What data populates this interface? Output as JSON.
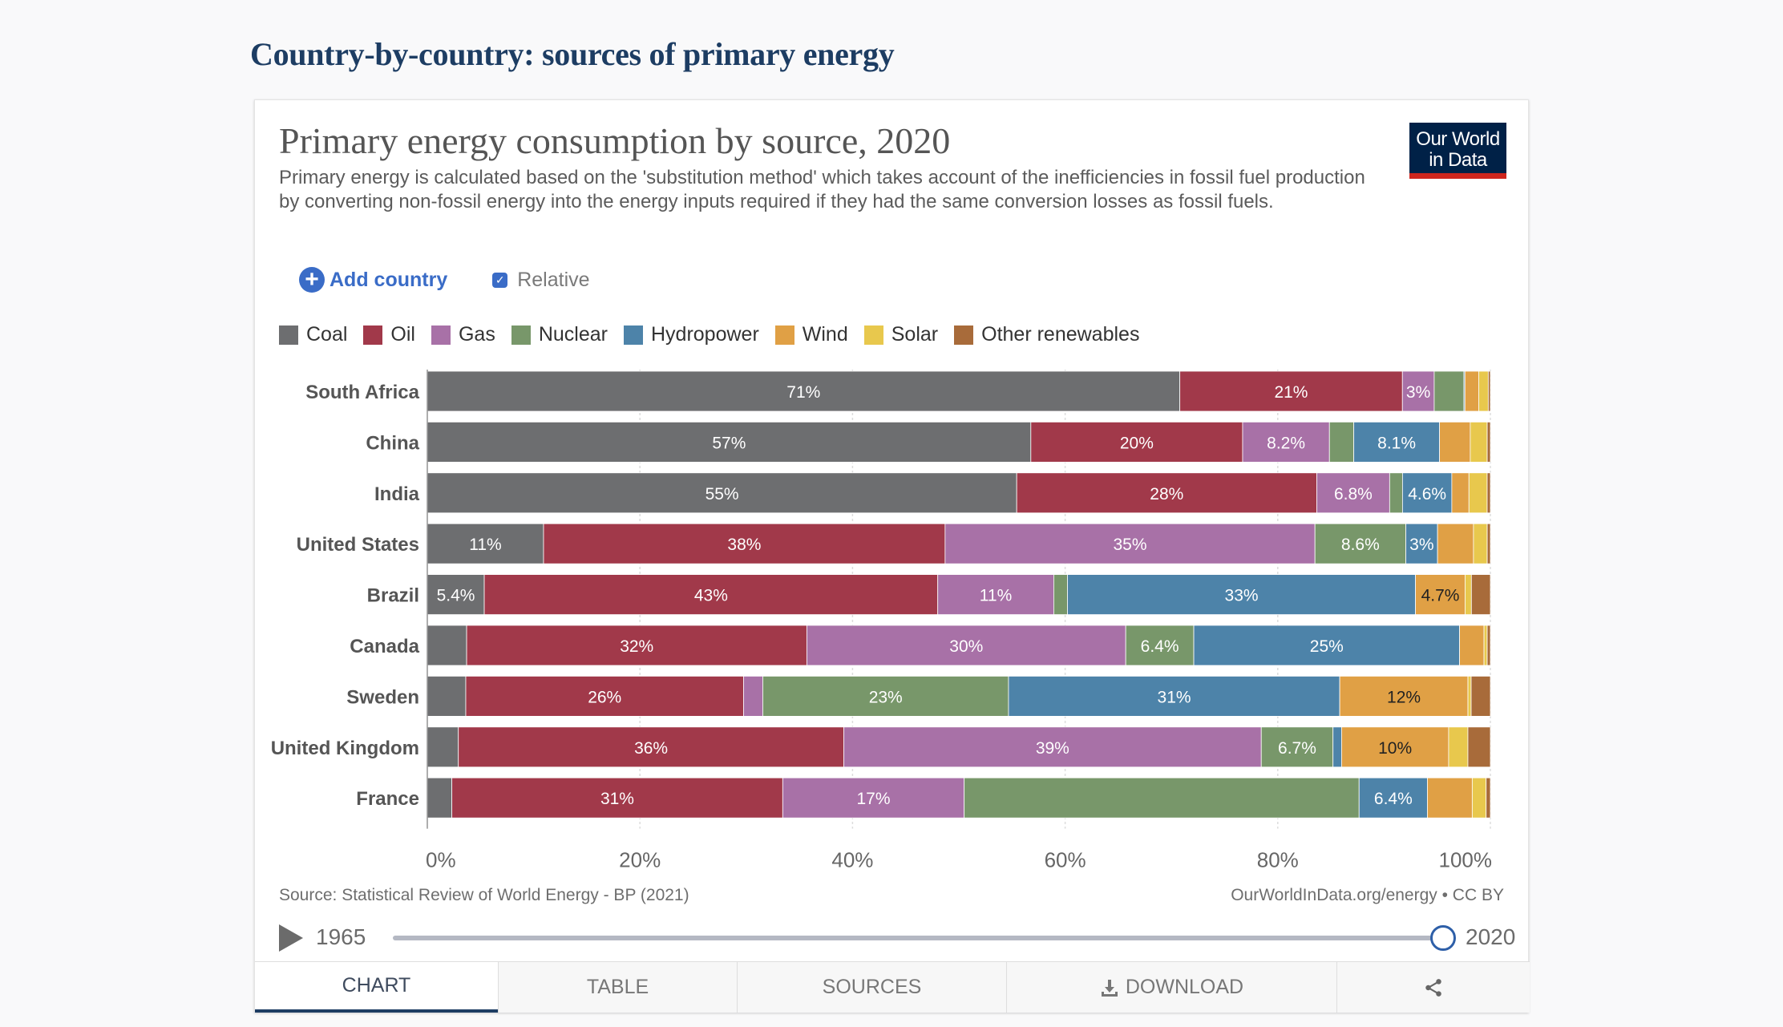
{
  "page": {
    "section_title": "Country-by-country: sources of primary energy"
  },
  "header": {
    "title": "Primary energy consumption by source, 2020",
    "subtitle": "Primary energy is calculated based on the 'substitution method' which takes account of the inefficiencies in fossil fuel production by converting non-fossil energy into the energy inputs required if they had the same conversion losses as fossil fuels.",
    "logo_line1": "Our World",
    "logo_line2": "in Data"
  },
  "controls": {
    "add_country": "Add country",
    "relative": "Relative",
    "relative_checked": true
  },
  "chart_data": {
    "type": "bar",
    "orientation": "horizontal",
    "stacked": true,
    "x_tick_labels": [
      "0%",
      "20%",
      "40%",
      "60%",
      "80%",
      "100%"
    ],
    "xlim": [
      0,
      100
    ],
    "grid": true,
    "legend_placement": "top",
    "categories": [
      "South Africa",
      "China",
      "India",
      "United States",
      "Brazil",
      "Canada",
      "Sweden",
      "United Kingdom",
      "France"
    ],
    "series": [
      {
        "name": "Coal",
        "color": "#6d6e70",
        "values": [
          71,
          57,
          55,
          11,
          5.4,
          3.7,
          3.6,
          2.9,
          2.3
        ],
        "labels": [
          "71%",
          "57%",
          "55%",
          "11%",
          "5.4%",
          "",
          "",
          "",
          ""
        ]
      },
      {
        "name": "Oil",
        "color": "#a1394a",
        "values": [
          21,
          20,
          28,
          38,
          43,
          32,
          26,
          36,
          31
        ],
        "labels": [
          "21%",
          "20%",
          "28%",
          "38%",
          "43%",
          "32%",
          "26%",
          "36%",
          "31%"
        ]
      },
      {
        "name": "Gas",
        "color": "#a871a7",
        "values": [
          3,
          8.2,
          6.8,
          35,
          11,
          30,
          1.8,
          39,
          17
        ],
        "labels": [
          "3%",
          "8.2%",
          "6.8%",
          "35%",
          "11%",
          "30%",
          "",
          "39%",
          "17%"
        ]
      },
      {
        "name": "Nuclear",
        "color": "#78976a",
        "values": [
          2.8,
          2.3,
          1.2,
          8.6,
          1.3,
          6.4,
          23,
          6.7,
          37
        ],
        "labels": [
          "",
          "",
          "",
          "8.6%",
          "",
          "6.4%",
          "23%",
          "6.7%",
          ""
        ]
      },
      {
        "name": "Hydropower",
        "color": "#4d83a9",
        "values": [
          0.1,
          8.1,
          4.6,
          3,
          33,
          25,
          31,
          0.8,
          6.4
        ],
        "labels": [
          "",
          "8.1%",
          "4.6%",
          "3%",
          "33%",
          "25%",
          "31%",
          "",
          "6.4%"
        ]
      },
      {
        "name": "Wind",
        "color": "#e0a045",
        "values": [
          1.3,
          2.9,
          1.6,
          3.4,
          4.7,
          2.3,
          12,
          10,
          4.2
        ],
        "labels": [
          "",
          "",
          "",
          "",
          "4.7%",
          "",
          "12%",
          "10%",
          ""
        ]
      },
      {
        "name": "Solar",
        "color": "#e8c84d",
        "values": [
          0.9,
          1.6,
          1.7,
          1.3,
          0.6,
          0.3,
          0.3,
          1.8,
          1.3
        ],
        "labels": [
          "",
          "",
          "",
          "",
          "",
          "",
          "",
          "",
          ""
        ]
      },
      {
        "name": "Other renewables",
        "color": "#a86b3a",
        "values": [
          0.2,
          0.3,
          0.3,
          0.3,
          1.8,
          0.3,
          1.8,
          2.1,
          0.4
        ],
        "labels": [
          "",
          "",
          "",
          "",
          "",
          "",
          "",
          "",
          ""
        ]
      }
    ],
    "dark_label_series": [
      "Wind",
      "Solar"
    ]
  },
  "footer": {
    "source": "Source: Statistical Review of World Energy - BP (2021)",
    "attribution": "OurWorldInData.org/energy • CC BY"
  },
  "timeline": {
    "start_year": "1965",
    "end_year": "2020"
  },
  "tabs": {
    "chart": "CHART",
    "table": "TABLE",
    "sources": "SOURCES",
    "download": "DOWNLOAD"
  }
}
